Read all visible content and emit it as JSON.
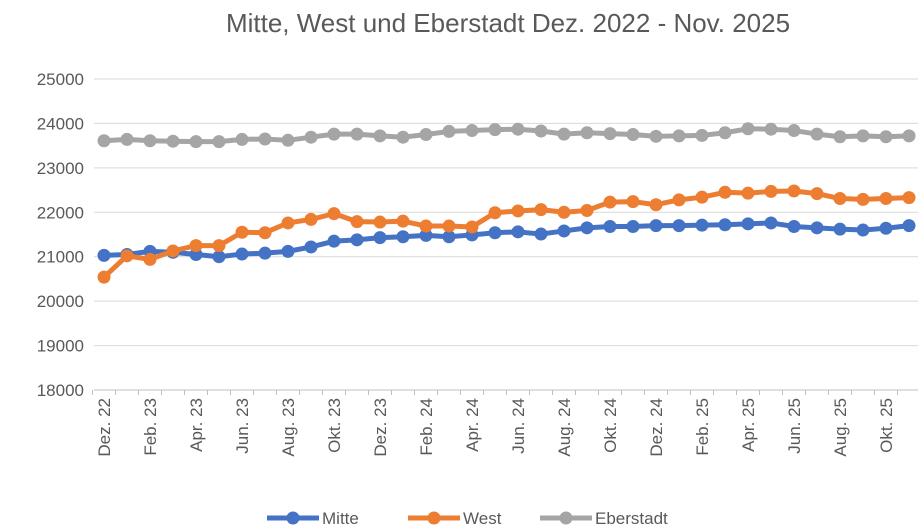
{
  "chart_data": {
    "type": "line",
    "title": "Mitte, West und Eberstadt Dez. 2022 - Nov. 2025",
    "categories": [
      "Dez. 22",
      null,
      "Feb. 23",
      null,
      "Apr. 23",
      null,
      "Jun. 23",
      null,
      "Aug. 23",
      null,
      "Okt. 23",
      null,
      "Dez. 23",
      null,
      "Feb. 24",
      null,
      "Apr. 24",
      null,
      "Jun. 24",
      null,
      "Aug. 24",
      null,
      "Okt. 24",
      null,
      "Dez. 24",
      null,
      "Feb. 25",
      null,
      "Apr. 25",
      null,
      "Jun. 25",
      null,
      "Aug. 25",
      null,
      "Okt. 25",
      null
    ],
    "series": [
      {
        "name": "Mitte",
        "color": "#4472c4",
        "values": [
          21030,
          21050,
          21120,
          21100,
          21050,
          21000,
          21060,
          21080,
          21120,
          21220,
          21350,
          21380,
          21430,
          21450,
          21480,
          21450,
          21490,
          21540,
          21560,
          21510,
          21580,
          21650,
          21680,
          21680,
          21700,
          21700,
          21710,
          21720,
          21740,
          21760,
          21680,
          21650,
          21620,
          21600,
          21640,
          21700
        ]
      },
      {
        "name": "West",
        "color": "#ed7d31",
        "values": [
          20540,
          21020,
          20940,
          21130,
          21250,
          21250,
          21550,
          21540,
          21760,
          21840,
          21970,
          21790,
          21780,
          21800,
          21690,
          21690,
          21670,
          21990,
          22030,
          22060,
          22000,
          22040,
          22230,
          22240,
          22170,
          22280,
          22340,
          22450,
          22430,
          22470,
          22480,
          22420,
          22310,
          22290,
          22310,
          22330
        ]
      },
      {
        "name": "Eberstadt",
        "color": "#a5a5a5",
        "values": [
          23610,
          23640,
          23610,
          23600,
          23590,
          23590,
          23640,
          23650,
          23620,
          23690,
          23760,
          23760,
          23720,
          23690,
          23750,
          23820,
          23840,
          23860,
          23870,
          23830,
          23760,
          23790,
          23770,
          23750,
          23710,
          23720,
          23730,
          23790,
          23880,
          23870,
          23840,
          23760,
          23700,
          23720,
          23700,
          23720
        ]
      }
    ],
    "ylim": [
      18000,
      25000
    ],
    "yticks": [
      18000,
      19000,
      20000,
      21000,
      22000,
      23000,
      24000,
      25000
    ],
    "grid": true,
    "legend": "bottom"
  }
}
